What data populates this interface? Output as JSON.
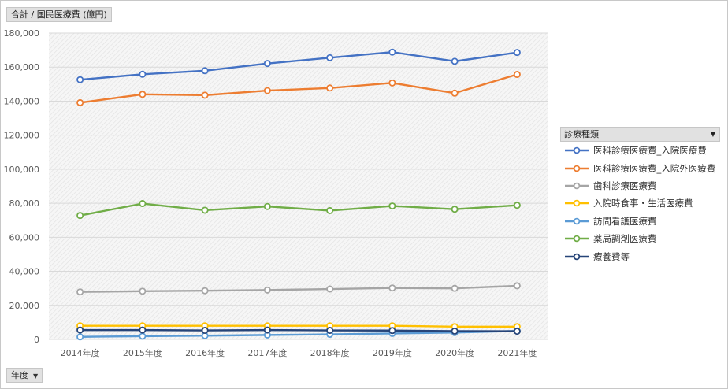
{
  "value_field": "合計 / 国民医療費 (億円)",
  "axis_field": "年度",
  "legend_field": "診療種類",
  "dropdown_arrow": "▼",
  "colors": {
    "plot_bg": "#f2f2f2",
    "grid": "#d9d9d9",
    "text": "#595959"
  },
  "chart_data": {
    "type": "line",
    "title": "",
    "xlabel": "",
    "ylabel": "",
    "categories": [
      "2014年度",
      "2015年度",
      "2016年度",
      "2017年度",
      "2018年度",
      "2019年度",
      "2020年度",
      "2021年度"
    ],
    "ylim": [
      0,
      180000
    ],
    "yticks": [
      "0",
      "20,000",
      "40,000",
      "60,000",
      "80,000",
      "100,000",
      "120,000",
      "140,000",
      "160,000",
      "180,000"
    ],
    "grid": true,
    "legend_position": "right",
    "series": [
      {
        "name": "医科診療医療費_入院医療費",
        "color": "#4472c4",
        "values": [
          152600,
          155800,
          157900,
          162100,
          165500,
          168800,
          163400,
          168600
        ]
      },
      {
        "name": "医科診療医療費_入院外医療費",
        "color": "#ed7d31",
        "values": [
          139100,
          144000,
          143500,
          146200,
          147700,
          150700,
          144700,
          155700
        ]
      },
      {
        "name": "歯科診療医療費",
        "color": "#a5a5a5",
        "values": [
          27900,
          28300,
          28600,
          29000,
          29600,
          30200,
          30000,
          31500
        ]
      },
      {
        "name": "入院時食事・生活医療費",
        "color": "#ffc000",
        "values": [
          8000,
          8000,
          8000,
          8000,
          8000,
          8000,
          7500,
          7500
        ]
      },
      {
        "name": "訪問看護医療費",
        "color": "#5b9bd5",
        "values": [
          1500,
          1900,
          2200,
          2600,
          3000,
          3500,
          4000,
          5000
        ]
      },
      {
        "name": "薬局調剤医療費",
        "color": "#70ad47",
        "values": [
          72800,
          79800,
          75900,
          78100,
          75700,
          78400,
          76500,
          78800
        ]
      },
      {
        "name": "療養費等",
        "color": "#264478",
        "values": [
          5500,
          5500,
          5300,
          5500,
          5300,
          5200,
          4900,
          4800
        ]
      }
    ]
  }
}
